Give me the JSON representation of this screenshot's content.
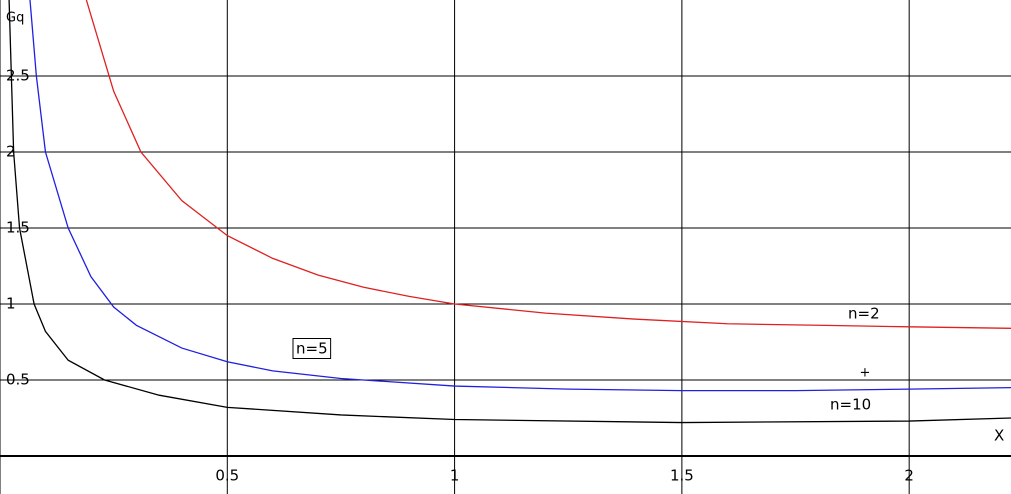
{
  "chart_data": {
    "type": "line",
    "x_label": "X",
    "y_label": "Gq",
    "xlim": [
      0,
      2.224
    ],
    "ylim": [
      -0.25,
      3.0
    ],
    "xticks": [
      0.5,
      1,
      1.5,
      2
    ],
    "yticks": [
      0.5,
      1,
      1.5,
      2,
      2.5
    ],
    "grid": true,
    "series": [
      {
        "name": "n=2",
        "color": "#e02020",
        "x": [
          0.19,
          0.25,
          0.31,
          0.4,
          0.5,
          0.6,
          0.7,
          0.8,
          0.9,
          1.0,
          1.2,
          1.4,
          1.6,
          1.8,
          2.0,
          2.224
        ],
        "values": [
          3.0,
          2.4,
          2.0,
          1.68,
          1.45,
          1.3,
          1.19,
          1.11,
          1.05,
          1.0,
          0.94,
          0.9,
          0.87,
          0.86,
          0.85,
          0.84
        ]
      },
      {
        "name": "n=5",
        "color": "#2020e0",
        "x": [
          0.066,
          0.08,
          0.1,
          0.15,
          0.2,
          0.25,
          0.3,
          0.4,
          0.5,
          0.6,
          0.75,
          1.0,
          1.25,
          1.5,
          1.75,
          2.0,
          2.224
        ],
        "values": [
          3.0,
          2.5,
          2.0,
          1.5,
          1.18,
          0.98,
          0.86,
          0.71,
          0.62,
          0.56,
          0.51,
          0.46,
          0.44,
          0.43,
          0.43,
          0.44,
          0.45
        ]
      },
      {
        "name": "n=10",
        "color": "#000000",
        "x": [
          0.02,
          0.025,
          0.03,
          0.043,
          0.075,
          0.1,
          0.15,
          0.23,
          0.35,
          0.5,
          0.75,
          1.0,
          1.5,
          2.0,
          2.224
        ],
        "values": [
          3.0,
          2.5,
          2.0,
          1.5,
          1.0,
          0.82,
          0.63,
          0.5,
          0.4,
          0.32,
          0.27,
          0.24,
          0.22,
          0.23,
          0.25
        ]
      }
    ],
    "annotations": [
      "+"
    ]
  }
}
